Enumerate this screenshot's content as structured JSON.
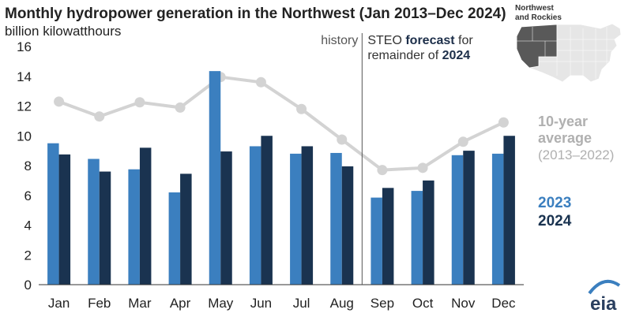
{
  "chart_data": {
    "type": "bar",
    "title": "Monthly hydropower generation in the Northwest (Jan 2013–Dec 2024)",
    "ylabel": "billion kilowatthours",
    "ylim": [
      0,
      16
    ],
    "yticks": [
      "0",
      "2",
      "4",
      "6",
      "8",
      "10",
      "12",
      "14",
      "16"
    ],
    "categories": [
      "Jan",
      "Feb",
      "Mar",
      "Apr",
      "May",
      "Jun",
      "Jul",
      "Aug",
      "Sep",
      "Oct",
      "Nov",
      "Dec"
    ],
    "series": [
      {
        "name": "2023",
        "type": "bar",
        "color": "#3b7fbf",
        "values": [
          9.5,
          8.45,
          7.75,
          6.2,
          14.35,
          9.3,
          8.8,
          8.85,
          5.85,
          6.3,
          8.7,
          8.8
        ]
      },
      {
        "name": "2024",
        "type": "bar",
        "color": "#1a3350",
        "values": [
          8.75,
          7.6,
          9.2,
          7.45,
          8.95,
          10.0,
          9.3,
          7.95,
          6.5,
          7.0,
          9.0,
          10.0
        ]
      },
      {
        "name": "10-year average",
        "type": "line",
        "color": "#d3d3d3",
        "values": [
          12.3,
          11.3,
          12.25,
          11.9,
          13.95,
          13.6,
          11.8,
          9.75,
          7.7,
          7.85,
          9.6,
          10.9
        ]
      }
    ],
    "annotations": {
      "history": "history",
      "forecast_prefix": "STEO ",
      "forecast_bold": "forecast",
      "forecast_suffix": " for",
      "forecast_line2_prefix": "remainder of ",
      "forecast_line2_bold": "2024",
      "average_line1": "10-year",
      "average_line2": "average",
      "average_line3": "(2013–2022)",
      "legend_2023": "2023",
      "legend_2024": "2024",
      "inset_line1": "Northwest",
      "inset_line2": "and Rockies",
      "logo": "eia"
    },
    "forecast_divider_after": "Aug",
    "legend": "right",
    "grid": false
  }
}
